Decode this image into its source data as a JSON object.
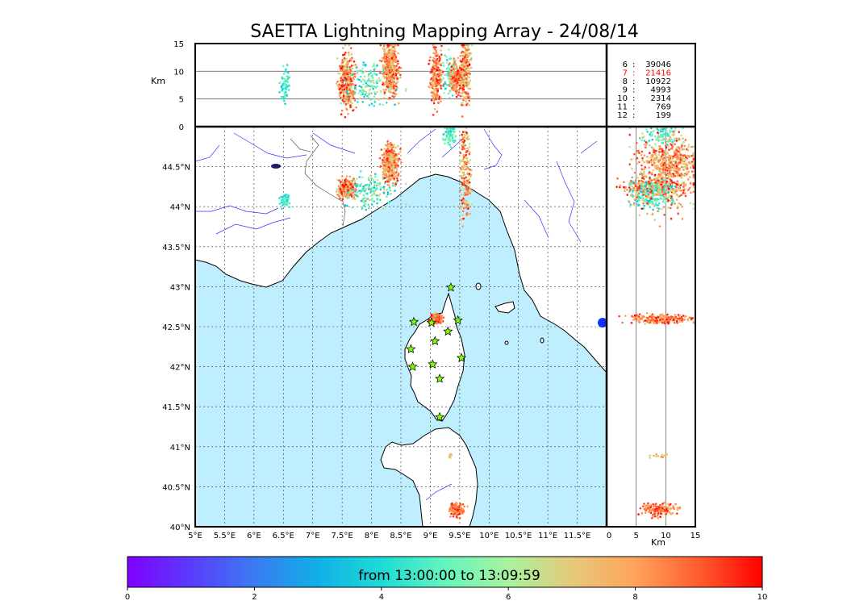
{
  "title": "SAETTA Lightning Mapping Array - 24/08/14",
  "colors": {
    "sea": "#bfeeff",
    "land": "#ffffff",
    "coast": "#000000",
    "river": "#3333ff",
    "border": "#555555",
    "station_fill": "#7cfc00",
    "highlight_stat": "#ff0000"
  },
  "map": {
    "lon_range": [
      5,
      12
    ],
    "lat_range": [
      40,
      45
    ],
    "lon_ticks": [
      5,
      5.5,
      6,
      6.5,
      7,
      7.5,
      8,
      8.5,
      9,
      9.5,
      10,
      10.5,
      11,
      11.5
    ],
    "lon_labels": [
      "5°E",
      "5.5°E",
      "6°E",
      "6.5°E",
      "7°E",
      "7.5°E",
      "8°E",
      "8.5°E",
      "9°E",
      "9.5°E",
      "10°E",
      "10.5°E",
      "11°E",
      "11.5°E"
    ],
    "lat_ticks": [
      40,
      40.5,
      41,
      41.5,
      42,
      42.5,
      43,
      43.5,
      44,
      44.5
    ],
    "lat_labels": [
      "40°N",
      "40.5°N",
      "41°N",
      "41.5°N",
      "42°N",
      "42.5°N",
      "43°N",
      "43.5°N",
      "44°N",
      "44.5°N"
    ]
  },
  "alt": {
    "range": [
      0,
      15
    ],
    "ticks": [
      0,
      5,
      10,
      15
    ],
    "tick_labels": [
      "0",
      "5",
      "10",
      "15"
    ],
    "label": "Km"
  },
  "stations": [
    {
      "lon": 9.35,
      "lat": 42.99
    },
    {
      "lon": 8.72,
      "lat": 42.56
    },
    {
      "lon": 9.02,
      "lat": 42.55
    },
    {
      "lon": 9.47,
      "lat": 42.58
    },
    {
      "lon": 9.3,
      "lat": 42.44
    },
    {
      "lon": 9.08,
      "lat": 42.32
    },
    {
      "lon": 8.67,
      "lat": 42.22
    },
    {
      "lon": 9.53,
      "lat": 42.11
    },
    {
      "lon": 9.04,
      "lat": 42.03
    },
    {
      "lon": 8.7,
      "lat": 42.0
    },
    {
      "lon": 9.16,
      "lat": 41.85
    },
    {
      "lon": 9.16,
      "lat": 41.37
    }
  ],
  "clusters": [
    {
      "lon": 6.52,
      "lat": 44.08,
      "alt": 7.5,
      "slon": 0.04,
      "slat": 0.04,
      "salt": 1.5,
      "n": 60,
      "cmin": 3.5,
      "cmax": 5.5
    },
    {
      "lon": 7.58,
      "lat": 44.23,
      "alt": 8.0,
      "slon": 0.07,
      "slat": 0.06,
      "salt": 2.5,
      "n": 320,
      "cmin": 6.5,
      "cmax": 10
    },
    {
      "lon": 8.0,
      "lat": 44.2,
      "alt": 8.0,
      "slon": 0.2,
      "slat": 0.1,
      "salt": 2.0,
      "n": 160,
      "cmin": 3.0,
      "cmax": 7.0
    },
    {
      "lon": 8.32,
      "lat": 44.55,
      "alt": 10.5,
      "slon": 0.07,
      "slat": 0.12,
      "salt": 2.5,
      "n": 380,
      "cmin": 6.5,
      "cmax": 10
    },
    {
      "lon": 9.33,
      "lat": 44.9,
      "alt": 9.5,
      "slon": 0.05,
      "slat": 0.06,
      "salt": 2.0,
      "n": 90,
      "cmin": 3.5,
      "cmax": 6.0
    },
    {
      "lon": 9.1,
      "lat": 42.6,
      "alt": 9.0,
      "slon": 0.05,
      "slat": 0.03,
      "salt": 2.5,
      "n": 200,
      "cmin": 7.0,
      "cmax": 10
    },
    {
      "lon": 9.34,
      "lat": 40.89,
      "alt": 9.0,
      "slon": 0.02,
      "slat": 0.02,
      "salt": 1.0,
      "n": 12,
      "cmin": 6.5,
      "cmax": 8.5
    },
    {
      "lon": 9.45,
      "lat": 40.22,
      "alt": 9.0,
      "slon": 0.06,
      "slat": 0.04,
      "salt": 1.5,
      "n": 160,
      "cmin": 7.5,
      "cmax": 10
    },
    {
      "lon": 9.6,
      "lat": 44.4,
      "alt": 10.0,
      "slon": 0.05,
      "slat": 0.3,
      "salt": 3.0,
      "n": 200,
      "cmin": 6.0,
      "cmax": 10
    }
  ],
  "stats": [
    {
      "level": "6",
      "count": "39046",
      "highlight": false
    },
    {
      "level": "7",
      "count": "21416",
      "highlight": true
    },
    {
      "level": "8",
      "count": "10922",
      "highlight": false
    },
    {
      "level": "9",
      "count": "4993",
      "highlight": false
    },
    {
      "level": "10",
      "count": "2314",
      "highlight": false
    },
    {
      "level": "11",
      "count": "769",
      "highlight": false
    },
    {
      "level": "12",
      "count": "199",
      "highlight": false
    }
  ],
  "colorbar": {
    "range": [
      0,
      10
    ],
    "ticks": [
      "0",
      "2",
      "4",
      "6",
      "8",
      "10"
    ],
    "text": "from 13:00:00 to 13:09:59"
  }
}
